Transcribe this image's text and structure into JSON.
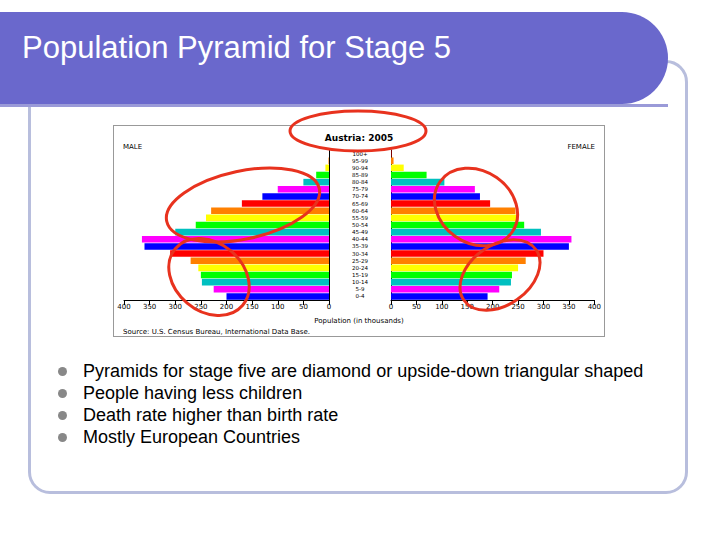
{
  "slide": {
    "title": "Population Pyramid for Stage 5",
    "bullets": [
      "Pyramids for stage five are diamond or upside-down triangular shaped",
      "People having less children",
      "Death rate higher than birth rate",
      "Mostly European Countries"
    ]
  },
  "chart_data": {
    "type": "bar",
    "orientation": "horizontal",
    "title": "Austria: 2005",
    "xlabel": "Population (in thousands)",
    "source": "Source: U.S. Census Bureau, International Data Base.",
    "categories": [
      "0-4",
      "5-9",
      "10-14",
      "15-19",
      "20-24",
      "25-29",
      "30-34",
      "35-39",
      "40-44",
      "45-49",
      "50-54",
      "55-59",
      "60-64",
      "65-69",
      "70-74",
      "75-79",
      "80-84",
      "85-89",
      "90-94",
      "95-99",
      "100+"
    ],
    "series": [
      {
        "name": "MALE",
        "values": [
          200,
          225,
          248,
          250,
          255,
          270,
          310,
          360,
          365,
          300,
          260,
          240,
          230,
          170,
          130,
          100,
          50,
          25,
          7,
          1,
          0
        ]
      },
      {
        "name": "FEMALE",
        "values": [
          190,
          213,
          236,
          238,
          250,
          265,
          300,
          350,
          355,
          295,
          262,
          248,
          245,
          195,
          175,
          165,
          105,
          70,
          25,
          5,
          1
        ]
      }
    ],
    "colors": [
      "#0000ff",
      "#ff00ff",
      "#00c0c0",
      "#00ff00",
      "#ffff00",
      "#ff8000",
      "#ff0000",
      "#0000ff",
      "#ff00ff",
      "#00c0c0",
      "#00ff00",
      "#ffff00",
      "#ff8000",
      "#ff0000",
      "#0000ff",
      "#ff00ff",
      "#00c0c0",
      "#00ff00",
      "#ffff00",
      "#ff8000",
      "#ff0000"
    ],
    "xlim": [
      0,
      400
    ],
    "xticks": [
      0,
      50,
      100,
      150,
      200,
      250,
      300,
      350,
      400
    ]
  }
}
